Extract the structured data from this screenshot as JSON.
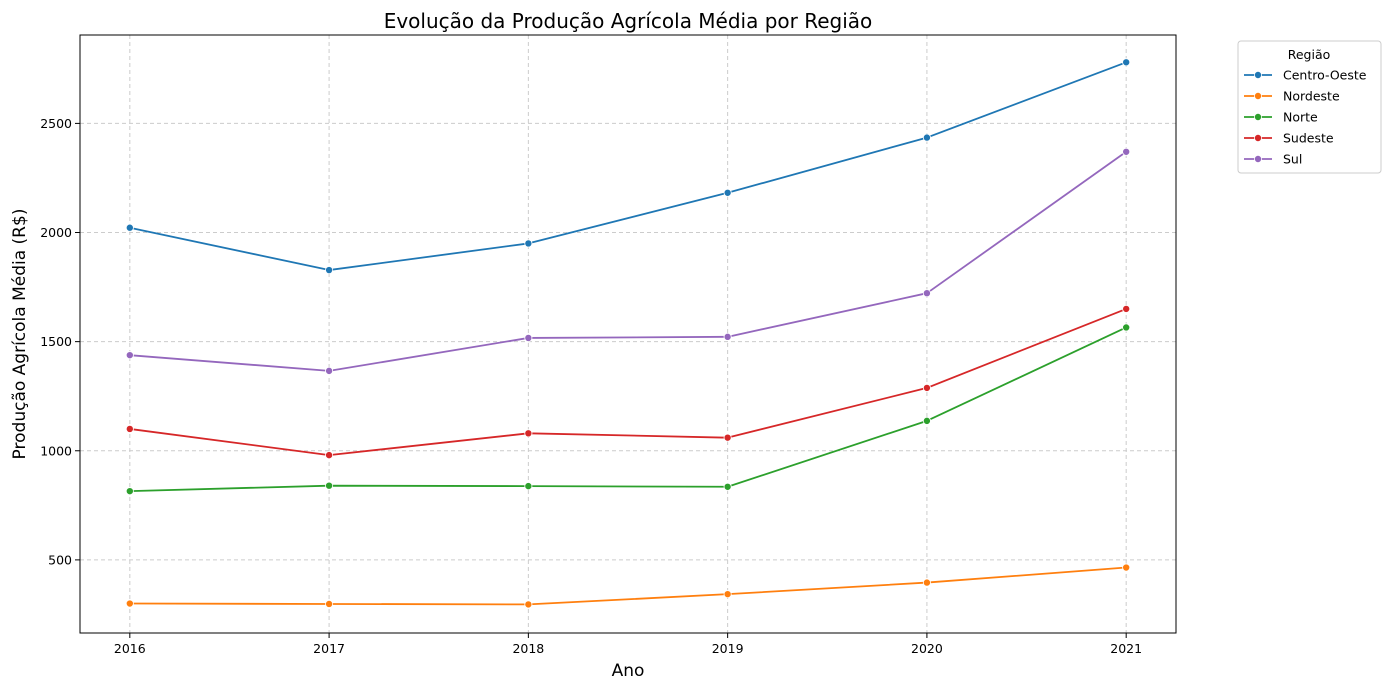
{
  "chart_data": {
    "type": "line",
    "title": "Evolução da Produção Agrícola Média por Região",
    "xlabel": "Ano",
    "ylabel": "Produção Agrícola Média (R$)",
    "x": [
      2016,
      2017,
      2018,
      2019,
      2020,
      2021
    ],
    "xticks": [
      "2016",
      "2017",
      "2018",
      "2019",
      "2020",
      "2021"
    ],
    "yticks": [
      500,
      1000,
      1500,
      2000,
      2500
    ],
    "ytick_labels": [
      "500",
      "1000",
      "1500",
      "2000",
      "2500"
    ],
    "xlim": [
      2015.75,
      2021.25
    ],
    "ylim": [
      165,
      2905
    ],
    "grid": true,
    "markers": true,
    "legend": {
      "title": "Região",
      "placement": "outside-top-right"
    },
    "series": [
      {
        "name": "Centro-Oeste",
        "color": "#1f77b4",
        "values": [
          2022,
          1828,
          1950,
          2182,
          2435,
          2780
        ]
      },
      {
        "name": "Nordeste",
        "color": "#ff7f0e",
        "values": [
          300,
          298,
          296,
          343,
          396,
          465
        ]
      },
      {
        "name": "Norte",
        "color": "#2ca02c",
        "values": [
          815,
          840,
          838,
          835,
          1137,
          1565
        ]
      },
      {
        "name": "Sudeste",
        "color": "#d62728",
        "values": [
          1100,
          980,
          1080,
          1060,
          1288,
          1650
        ]
      },
      {
        "name": "Sul",
        "color": "#9467bd",
        "values": [
          1438,
          1366,
          1517,
          1522,
          1722,
          2370
        ]
      }
    ]
  }
}
